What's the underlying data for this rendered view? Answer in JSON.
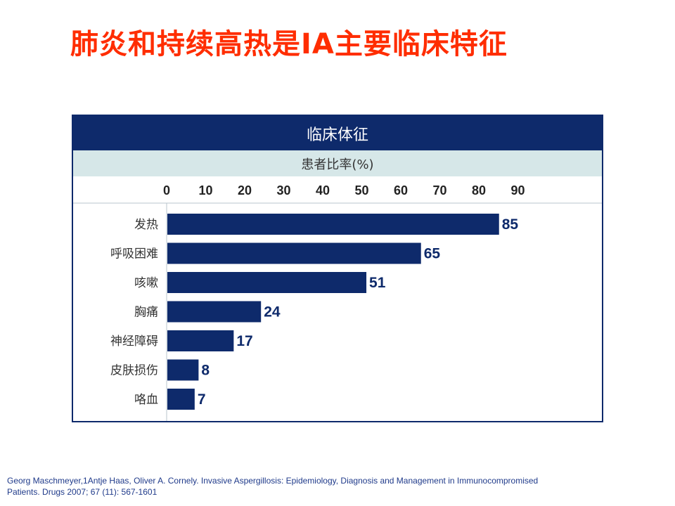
{
  "slide": {
    "title": "肺炎和持续高热是IA主要临床特征",
    "citation": "Georg Maschmeyer,1Antje Haas, Oliver A. Cornely. Invasive Aspergillosis: Epidemiology, Diagnosis and Management in Immunocompromised Patients. Drugs 2007; 67 (11): 567-1601"
  },
  "chart_data": {
    "type": "bar",
    "orientation": "horizontal",
    "title": "临床体征",
    "xlabel": "患者比率(%)",
    "ylabel": "",
    "xlim": [
      0,
      90
    ],
    "ticks": [
      0,
      10,
      20,
      30,
      40,
      50,
      60,
      70,
      80,
      90
    ],
    "categories": [
      "发热",
      "呼吸困难",
      "咳嗽",
      "胸痛",
      "神经障碍",
      "皮肤损伤",
      "咯血"
    ],
    "values": [
      85,
      65,
      51,
      24,
      17,
      8,
      7
    ],
    "data_labels": [
      "85",
      "65",
      "51",
      "24",
      "17",
      "8",
      "7"
    ],
    "bar_color": "#0e2a6b",
    "header_color": "#0e2a6b",
    "subheader_color": "#d6e7e8"
  }
}
